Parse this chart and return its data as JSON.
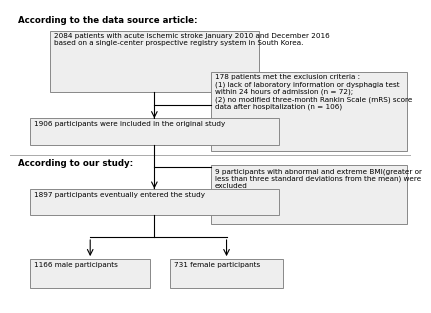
{
  "section1_label": "According to the data source article:",
  "section2_label": "According to our study:",
  "box1_text": "2084 patients with acute ischemic stroke January 2010 and December 2016\nbased on a single-center prospective registry system in South Korea.",
  "box2_text": "178 patients met the exclusion criteria :\n(1) lack of laboratory information or dysphagia test\nwithin 24 hours of admission (n = 72);\n(2) no modified three-month Rankin Scale (mRS) score\ndata after hospitalization (n = 106)",
  "box3_text": "1906 participants were included in the original study",
  "box4_text": "9 participants with abnormal and extreme BMI(greater or\nless than three standard deviations from the mean) were\nexcluded",
  "box5_text": "1897 participants eventually entered the study",
  "box6_text": "1166 male participants",
  "box7_text": "731 female participants",
  "font_size": 5.2,
  "label_font_size": 6.2,
  "box_facecolor": "#eeeeee",
  "box_edgecolor": "#888888",
  "divider_color": "#aaaaaa",
  "arrow_color": "black",
  "line_color": "black"
}
